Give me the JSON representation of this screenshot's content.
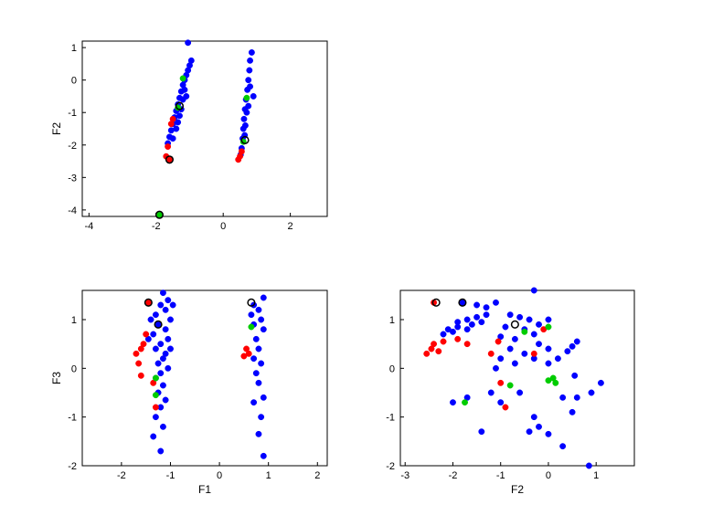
{
  "chart_data": [
    {
      "type": "scatter",
      "xlabel": "",
      "ylabel": "F2",
      "xlim": [
        -4.2,
        3.1
      ],
      "ylim": [
        -4.2,
        1.2
      ],
      "xticks": [
        -4,
        -2,
        0,
        2
      ],
      "yticks": [
        1,
        0,
        -1,
        -2,
        -3,
        -4
      ],
      "grid": false,
      "series": [
        {
          "color": "#0000ff",
          "points": [
            [
              -1.05,
              1.15
            ],
            [
              -0.95,
              0.6
            ],
            [
              -1.0,
              0.45
            ],
            [
              -1.05,
              0.3
            ],
            [
              -1.1,
              0.15
            ],
            [
              -1.15,
              0.0
            ],
            [
              -1.2,
              -0.15
            ],
            [
              -1.25,
              -0.35
            ],
            [
              -1.3,
              -0.55
            ],
            [
              -1.35,
              -0.75
            ],
            [
              -1.4,
              -0.95
            ],
            [
              -1.45,
              -1.15
            ],
            [
              -1.5,
              -1.35
            ],
            [
              -1.55,
              -1.55
            ],
            [
              -1.6,
              -1.75
            ],
            [
              -1.65,
              -1.95
            ],
            [
              -1.15,
              -0.3
            ],
            [
              -1.2,
              -0.6
            ],
            [
              -1.3,
              -1.1
            ],
            [
              -1.4,
              -1.5
            ],
            [
              -1.25,
              -0.9
            ],
            [
              -1.35,
              -1.3
            ],
            [
              -1.1,
              -0.5
            ],
            [
              -1.5,
              -1.8
            ],
            [
              0.85,
              0.85
            ],
            [
              0.8,
              0.6
            ],
            [
              0.78,
              0.3
            ],
            [
              0.75,
              0.0
            ],
            [
              0.72,
              -0.3
            ],
            [
              0.68,
              -0.6
            ],
            [
              0.65,
              -0.9
            ],
            [
              0.62,
              -1.2
            ],
            [
              0.6,
              -1.5
            ],
            [
              0.58,
              -1.8
            ],
            [
              0.55,
              -2.1
            ],
            [
              0.52,
              -2.3
            ],
            [
              0.7,
              -1.0
            ],
            [
              0.66,
              -1.4
            ],
            [
              0.64,
              -1.7
            ],
            [
              0.8,
              -0.2
            ],
            [
              0.75,
              -0.8
            ],
            [
              0.9,
              -0.5
            ]
          ]
        },
        {
          "color": "#ff0000",
          "points": [
            [
              -1.5,
              -1.2
            ],
            [
              -1.55,
              -1.35
            ],
            [
              -1.65,
              -2.05
            ],
            [
              -1.7,
              -2.35
            ],
            [
              -1.6,
              -2.45
            ],
            [
              0.45,
              -2.45
            ],
            [
              0.5,
              -2.35
            ],
            [
              0.55,
              -2.2
            ]
          ]
        },
        {
          "color": "#00cc00",
          "points": [
            [
              -1.2,
              0.05
            ],
            [
              0.7,
              -0.55
            ],
            [
              -1.35,
              -0.85
            ],
            [
              0.6,
              -1.9
            ],
            [
              -1.9,
              -4.15
            ]
          ]
        }
      ]
    },
    {
      "type": "scatter",
      "xlabel": "F1",
      "ylabel": "F3",
      "xlim": [
        -2.8,
        2.2
      ],
      "ylim": [
        -2.0,
        1.6
      ],
      "xticks": [
        -2,
        -1,
        0,
        1,
        2
      ],
      "yticks": [
        1,
        0,
        -1,
        -2
      ],
      "grid": false,
      "series": [
        {
          "color": "#0000ff",
          "points": [
            [
              -1.15,
              1.55
            ],
            [
              -1.05,
              1.4
            ],
            [
              -1.2,
              1.3
            ],
            [
              -1.1,
              1.2
            ],
            [
              -1.3,
              1.1
            ],
            [
              -1.0,
              1.0
            ],
            [
              -1.25,
              0.9
            ],
            [
              -1.1,
              0.8
            ],
            [
              -1.35,
              0.7
            ],
            [
              -1.05,
              0.6
            ],
            [
              -1.2,
              0.5
            ],
            [
              -1.3,
              0.4
            ],
            [
              -1.1,
              0.3
            ],
            [
              -1.15,
              0.2
            ],
            [
              -1.25,
              0.1
            ],
            [
              -1.05,
              0.0
            ],
            [
              -1.2,
              -0.1
            ],
            [
              -1.3,
              -0.2
            ],
            [
              -1.15,
              -0.35
            ],
            [
              -1.25,
              -0.5
            ],
            [
              -1.1,
              -0.65
            ],
            [
              -1.2,
              -0.8
            ],
            [
              -1.3,
              -1.0
            ],
            [
              -1.15,
              -1.2
            ],
            [
              -1.35,
              -1.4
            ],
            [
              -1.2,
              -1.7
            ],
            [
              -0.95,
              1.3
            ],
            [
              -1.4,
              1.0
            ],
            [
              -1.45,
              0.6
            ],
            [
              -1.0,
              0.4
            ],
            [
              0.9,
              1.45
            ],
            [
              0.7,
              1.3
            ],
            [
              0.8,
              1.2
            ],
            [
              0.65,
              1.1
            ],
            [
              0.85,
              1.0
            ],
            [
              0.7,
              0.9
            ],
            [
              0.9,
              0.8
            ],
            [
              0.75,
              0.6
            ],
            [
              0.8,
              0.4
            ],
            [
              0.7,
              0.2
            ],
            [
              0.85,
              0.1
            ],
            [
              0.75,
              -0.1
            ],
            [
              0.8,
              -0.3
            ],
            [
              0.9,
              -0.6
            ],
            [
              0.7,
              -0.7
            ],
            [
              0.85,
              -1.0
            ],
            [
              0.8,
              -1.35
            ],
            [
              0.9,
              -1.8
            ]
          ]
        },
        {
          "color": "#ff0000",
          "points": [
            [
              -1.45,
              1.35
            ],
            [
              -1.5,
              0.7
            ],
            [
              -1.55,
              0.5
            ],
            [
              -1.6,
              0.4
            ],
            [
              -1.7,
              0.3
            ],
            [
              -1.65,
              0.1
            ],
            [
              -1.6,
              -0.15
            ],
            [
              -1.35,
              -0.3
            ],
            [
              -1.3,
              -0.8
            ],
            [
              0.55,
              0.4
            ],
            [
              0.6,
              0.3
            ],
            [
              0.5,
              0.25
            ]
          ]
        },
        {
          "color": "#00cc00",
          "points": [
            [
              -1.3,
              -0.2
            ],
            [
              -1.3,
              -0.55
            ],
            [
              0.65,
              0.85
            ]
          ]
        }
      ]
    },
    {
      "type": "scatter",
      "xlabel": "F2",
      "ylabel": "",
      "xlim": [
        -3.1,
        1.8
      ],
      "ylim": [
        -2.0,
        1.6
      ],
      "xticks": [
        -3,
        -2,
        -1,
        0,
        1
      ],
      "yticks": [
        1,
        0,
        -1,
        -2
      ],
      "grid": false,
      "series": [
        {
          "color": "#0000ff",
          "points": [
            [
              -1.8,
              1.35
            ],
            [
              -1.5,
              1.3
            ],
            [
              -1.3,
              1.25
            ],
            [
              -1.1,
              1.35
            ],
            [
              -1.9,
              0.95
            ],
            [
              -1.7,
              1.0
            ],
            [
              -1.5,
              1.05
            ],
            [
              -1.3,
              1.1
            ],
            [
              -2.1,
              0.8
            ],
            [
              -1.9,
              0.85
            ],
            [
              -1.6,
              0.9
            ],
            [
              -1.4,
              0.95
            ],
            [
              -2.2,
              0.7
            ],
            [
              -2.0,
              0.75
            ],
            [
              -1.7,
              0.8
            ],
            [
              -0.8,
              1.1
            ],
            [
              -0.6,
              1.05
            ],
            [
              -0.4,
              1.0
            ],
            [
              -0.2,
              0.9
            ],
            [
              -0.9,
              0.85
            ],
            [
              -0.5,
              0.8
            ],
            [
              -0.3,
              0.7
            ],
            [
              -1.0,
              0.65
            ],
            [
              -0.7,
              0.6
            ],
            [
              -0.2,
              0.5
            ],
            [
              0.0,
              0.4
            ],
            [
              -0.8,
              0.4
            ],
            [
              -0.5,
              0.3
            ],
            [
              -0.3,
              0.2
            ],
            [
              -1.0,
              0.2
            ],
            [
              -0.7,
              0.1
            ],
            [
              -1.1,
              0.0
            ],
            [
              0.0,
              0.1
            ],
            [
              0.2,
              0.2
            ],
            [
              0.4,
              0.35
            ],
            [
              0.5,
              0.45
            ],
            [
              0.6,
              0.55
            ],
            [
              -0.3,
              1.6
            ],
            [
              0.0,
              1.0
            ],
            [
              -2.0,
              -0.7
            ],
            [
              -1.7,
              -0.6
            ],
            [
              -1.2,
              -0.5
            ],
            [
              -1.0,
              -0.7
            ],
            [
              -0.6,
              -0.5
            ],
            [
              -0.3,
              -1.0
            ],
            [
              0.3,
              -0.6
            ],
            [
              0.6,
              -0.6
            ],
            [
              0.9,
              -0.5
            ],
            [
              1.1,
              -0.3
            ],
            [
              -1.4,
              -1.3
            ],
            [
              -0.2,
              -1.2
            ],
            [
              0.0,
              -1.35
            ],
            [
              0.5,
              -0.9
            ],
            [
              -0.4,
              -1.3
            ],
            [
              0.3,
              -1.6
            ],
            [
              0.85,
              -2.0
            ],
            [
              0.55,
              -0.15
            ]
          ]
        },
        {
          "color": "#ff0000",
          "points": [
            [
              -2.4,
              1.35
            ],
            [
              -2.45,
              0.4
            ],
            [
              -2.3,
              0.35
            ],
            [
              -2.2,
              0.55
            ],
            [
              -2.4,
              0.5
            ],
            [
              -2.55,
              0.3
            ],
            [
              -1.7,
              0.5
            ],
            [
              -1.9,
              0.6
            ],
            [
              -1.2,
              0.3
            ],
            [
              -1.0,
              -0.3
            ],
            [
              -0.9,
              -0.8
            ],
            [
              -0.3,
              0.3
            ],
            [
              -0.1,
              0.8
            ],
            [
              -1.05,
              0.55
            ]
          ]
        },
        {
          "color": "#00cc00",
          "points": [
            [
              -1.75,
              -0.7
            ],
            [
              0.0,
              -0.25
            ],
            [
              0.15,
              -0.3
            ],
            [
              0.1,
              -0.2
            ],
            [
              -0.5,
              0.75
            ],
            [
              0.0,
              0.85
            ],
            [
              -0.8,
              -0.35
            ]
          ]
        }
      ]
    }
  ]
}
